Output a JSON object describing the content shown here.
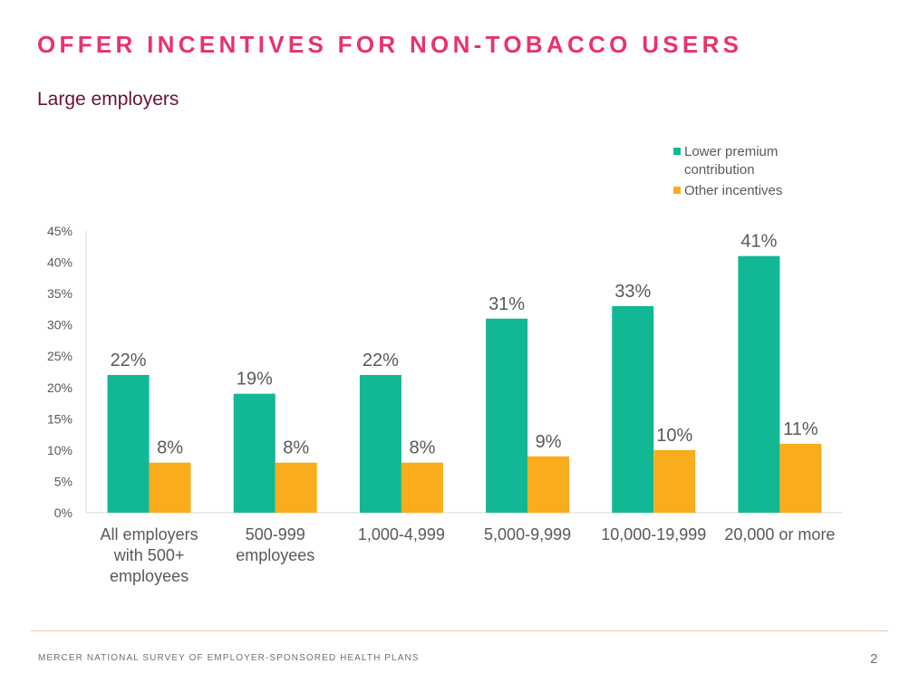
{
  "slide": {
    "title": "OFFER INCENTIVES FOR NON-TOBACCO USERS",
    "subtitle": "Large employers",
    "footer": "MERCER NATIONAL SURVEY OF EMPLOYER-SPONSORED HEALTH PLANS",
    "page_number": "2"
  },
  "colors": {
    "title": "#e8336b",
    "subtitle": "#6b1233",
    "series_1": "#12b794",
    "series_2": "#f9ad1c",
    "axis_text": "#595959"
  },
  "chart_data": {
    "type": "bar",
    "categories": [
      [
        "All employers",
        "with 500+",
        "employees"
      ],
      [
        "500-999",
        "employees"
      ],
      [
        "1,000-4,999"
      ],
      [
        "5,000-9,999"
      ],
      [
        "10,000-19,999"
      ],
      [
        "20,000 or more"
      ]
    ],
    "series": [
      {
        "name": "Lower premium contribution",
        "legend_lines": [
          "Lower premium",
          "contribution"
        ],
        "values": [
          22,
          19,
          22,
          31,
          33,
          41
        ],
        "labels": [
          "22%",
          "19%",
          "22%",
          "31%",
          "33%",
          "41%"
        ]
      },
      {
        "name": "Other incentives",
        "legend_lines": [
          "Other incentives"
        ],
        "values": [
          8,
          8,
          8,
          9,
          10,
          11
        ],
        "labels": [
          "8%",
          "8%",
          "8%",
          "9%",
          "10%",
          "11%"
        ]
      }
    ],
    "yticks": [
      "0%",
      "5%",
      "10%",
      "15%",
      "20%",
      "25%",
      "30%",
      "35%",
      "40%",
      "45%"
    ],
    "ylim": [
      0,
      45
    ],
    "legend_position": "top-right",
    "grid": false
  }
}
